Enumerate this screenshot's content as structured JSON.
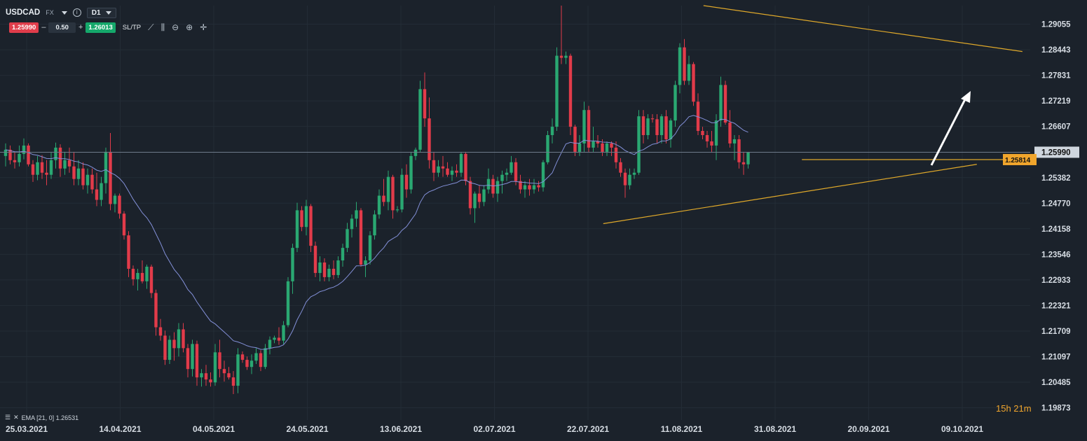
{
  "header": {
    "symbol": "USDCAD",
    "market": "FX",
    "timeframe": "D1",
    "bid": "1.25990",
    "volume": "0.50",
    "ask": "1.26013",
    "sltp": "SL/TP",
    "minus": "–",
    "plus": "+"
  },
  "indicator_label": "EMA [21, 0] 1.26531",
  "timer": "15h 21m",
  "axis": {
    "price_labels": [
      "1.29055",
      "1.28443",
      "1.27831",
      "1.27219",
      "1.26607",
      "1.25990",
      "1.25382",
      "1.24770",
      "1.24158",
      "1.23546",
      "1.22933",
      "1.22321",
      "1.21709",
      "1.21097",
      "1.20485",
      "1.19873"
    ],
    "date_labels": [
      "25.03.2021",
      "14.04.2021",
      "04.05.2021",
      "24.05.2021",
      "13.06.2021",
      "02.07.2021",
      "22.07.2021",
      "11.08.2021",
      "31.08.2021",
      "20.09.2021",
      "09.10.2021"
    ],
    "current_price": "1.25990",
    "horizontal_level": "1.25814"
  },
  "colors": {
    "bull": "#2aa872",
    "bear": "#e23b4a",
    "ema": "#8390d8",
    "trendline": "#e0a92a",
    "current_price_bg": "#cfd6de",
    "level_bg": "#f0a52c",
    "grid": "#232c36"
  },
  "chart_data": {
    "type": "candlestick",
    "ylim": [
      1.1958,
      1.295
    ],
    "x": [
      "25.03.2021",
      "14.04.2021",
      "04.05.2021",
      "24.05.2021",
      "13.06.2021",
      "02.07.2021",
      "22.07.2021",
      "11.08.2021",
      "31.08.2021",
      "20.09.2021",
      "09.10.2021"
    ],
    "candles_ohlc": [
      [
        1.259,
        1.262,
        1.2565,
        1.2605
      ],
      [
        1.2605,
        1.2615,
        1.257,
        1.258
      ],
      [
        1.258,
        1.26,
        1.256,
        1.2575
      ],
      [
        1.2575,
        1.2615,
        1.2565,
        1.2595
      ],
      [
        1.2595,
        1.2632,
        1.2582,
        1.2615
      ],
      [
        1.2615,
        1.262,
        1.2565,
        1.257
      ],
      [
        1.257,
        1.258,
        1.2528,
        1.2545
      ],
      [
        1.2545,
        1.259,
        1.2532,
        1.2575
      ],
      [
        1.2575,
        1.2592,
        1.2535,
        1.255
      ],
      [
        1.255,
        1.258,
        1.252,
        1.2545
      ],
      [
        1.2545,
        1.26,
        1.2535,
        1.258
      ],
      [
        1.258,
        1.2622,
        1.256,
        1.261
      ],
      [
        1.261,
        1.2618,
        1.254,
        1.256
      ],
      [
        1.256,
        1.26,
        1.2545,
        1.258
      ],
      [
        1.258,
        1.261,
        1.255,
        1.2565
      ],
      [
        1.2565,
        1.26,
        1.252,
        1.2535
      ],
      [
        1.2535,
        1.258,
        1.252,
        1.256
      ],
      [
        1.256,
        1.2575,
        1.251,
        1.252
      ],
      [
        1.252,
        1.256,
        1.25,
        1.2545
      ],
      [
        1.2545,
        1.256,
        1.25,
        1.251
      ],
      [
        1.251,
        1.255,
        1.247,
        1.2485
      ],
      [
        1.2485,
        1.254,
        1.247,
        1.2525
      ],
      [
        1.2525,
        1.261,
        1.25,
        1.26
      ],
      [
        1.26,
        1.2645,
        1.246,
        1.2475
      ],
      [
        1.2475,
        1.25,
        1.2455,
        1.2495
      ],
      [
        1.2495,
        1.25,
        1.244,
        1.2452
      ],
      [
        1.2452,
        1.2458,
        1.239,
        1.24
      ],
      [
        1.24,
        1.241,
        1.23,
        1.232
      ],
      [
        1.232,
        1.2328,
        1.228,
        1.2295
      ],
      [
        1.2295,
        1.232,
        1.2268,
        1.231
      ],
      [
        1.231,
        1.234,
        1.2285,
        1.229
      ],
      [
        1.229,
        1.233,
        1.2272,
        1.2325
      ],
      [
        1.2325,
        1.233,
        1.225,
        1.2262
      ],
      [
        1.2262,
        1.227,
        1.216,
        1.218
      ],
      [
        1.218,
        1.22,
        1.2148,
        1.216
      ],
      [
        1.216,
        1.2172,
        1.209,
        1.2102
      ],
      [
        1.2102,
        1.216,
        1.2092,
        1.215
      ],
      [
        1.215,
        1.2168,
        1.21,
        1.213
      ],
      [
        1.213,
        1.219,
        1.211,
        1.2175
      ],
      [
        1.2175,
        1.219,
        1.212,
        1.213
      ],
      [
        1.213,
        1.214,
        1.206,
        1.208
      ],
      [
        1.208,
        1.215,
        1.2062,
        1.214
      ],
      [
        1.214,
        1.2148,
        1.204,
        1.206
      ],
      [
        1.206,
        1.208,
        1.2038,
        1.207
      ],
      [
        1.207,
        1.209,
        1.204,
        1.2055
      ],
      [
        1.2055,
        1.2072,
        1.2038,
        1.2048
      ],
      [
        1.2048,
        1.214,
        1.204,
        1.212
      ],
      [
        1.212,
        1.215,
        1.206,
        1.208
      ],
      [
        1.208,
        1.21,
        1.205,
        1.207
      ],
      [
        1.207,
        1.2085,
        1.2055,
        1.206
      ],
      [
        1.206,
        1.2075,
        1.202,
        1.204
      ],
      [
        1.204,
        1.213,
        1.2022,
        1.2115
      ],
      [
        1.2115,
        1.2122,
        1.2095,
        1.2102
      ],
      [
        1.2102,
        1.211,
        1.2078,
        1.2085
      ],
      [
        1.2085,
        1.2115,
        1.2068,
        1.21
      ],
      [
        1.21,
        1.213,
        1.2092,
        1.2118
      ],
      [
        1.2118,
        1.2125,
        1.2075,
        1.2085
      ],
      [
        1.2085,
        1.214,
        1.208,
        1.213
      ],
      [
        1.213,
        1.2158,
        1.2115,
        1.215
      ],
      [
        1.215,
        1.216,
        1.2142,
        1.2155
      ],
      [
        1.2155,
        1.218,
        1.2138,
        1.2148
      ],
      [
        1.2148,
        1.2195,
        1.214,
        1.2185
      ],
      [
        1.2185,
        1.23,
        1.218,
        1.229
      ],
      [
        1.229,
        1.238,
        1.226,
        1.237
      ],
      [
        1.237,
        1.2478,
        1.236,
        1.246
      ],
      [
        1.246,
        1.247,
        1.241,
        1.242
      ],
      [
        1.242,
        1.2485,
        1.24,
        1.247
      ],
      [
        1.247,
        1.2475,
        1.236,
        1.2375
      ],
      [
        1.2375,
        1.2385,
        1.23,
        1.231
      ],
      [
        1.231,
        1.235,
        1.229,
        1.2335
      ],
      [
        1.2335,
        1.2345,
        1.229,
        1.23
      ],
      [
        1.23,
        1.233,
        1.229,
        1.232
      ],
      [
        1.232,
        1.234,
        1.2295,
        1.2305
      ],
      [
        1.2305,
        1.235,
        1.2298,
        1.234
      ],
      [
        1.234,
        1.238,
        1.2325,
        1.237
      ],
      [
        1.237,
        1.243,
        1.236,
        1.2415
      ],
      [
        1.2415,
        1.245,
        1.2395,
        1.244
      ],
      [
        1.244,
        1.248,
        1.242,
        1.246
      ],
      [
        1.246,
        1.2465,
        1.2325,
        1.233
      ],
      [
        1.233,
        1.235,
        1.23,
        1.234
      ],
      [
        1.234,
        1.241,
        1.233,
        1.24
      ],
      [
        1.24,
        1.246,
        1.239,
        1.245
      ],
      [
        1.245,
        1.251,
        1.244,
        1.2495
      ],
      [
        1.2495,
        1.2535,
        1.247,
        1.248
      ],
      [
        1.248,
        1.2555,
        1.246,
        1.254
      ],
      [
        1.254,
        1.2545,
        1.244,
        1.246
      ],
      [
        1.246,
        1.247,
        1.2455,
        1.2462
      ],
      [
        1.2462,
        1.256,
        1.2455,
        1.2545
      ],
      [
        1.2545,
        1.257,
        1.249,
        1.251
      ],
      [
        1.251,
        1.26,
        1.25,
        1.259
      ],
      [
        1.259,
        1.261,
        1.258,
        1.2605
      ],
      [
        1.2605,
        1.277,
        1.26,
        1.275
      ],
      [
        1.275,
        1.279,
        1.266,
        1.268
      ],
      [
        1.268,
        1.273,
        1.256,
        1.258
      ],
      [
        1.258,
        1.26,
        1.253,
        1.255
      ],
      [
        1.255,
        1.258,
        1.254,
        1.2565
      ],
      [
        1.2565,
        1.259,
        1.254,
        1.256
      ],
      [
        1.256,
        1.2575,
        1.254,
        1.2545
      ],
      [
        1.2545,
        1.2565,
        1.253,
        1.2555
      ],
      [
        1.2555,
        1.257,
        1.254,
        1.255
      ],
      [
        1.255,
        1.26,
        1.254,
        1.2595
      ],
      [
        1.2595,
        1.26,
        1.252,
        1.253
      ],
      [
        1.253,
        1.254,
        1.245,
        1.2465
      ],
      [
        1.2465,
        1.2505,
        1.243,
        1.25
      ],
      [
        1.25,
        1.252,
        1.2465,
        1.248
      ],
      [
        1.248,
        1.252,
        1.247,
        1.251
      ],
      [
        1.251,
        1.256,
        1.25,
        1.2535
      ],
      [
        1.2535,
        1.2545,
        1.249,
        1.25
      ],
      [
        1.25,
        1.254,
        1.248,
        1.253
      ],
      [
        1.253,
        1.2555,
        1.25,
        1.2545
      ],
      [
        1.2545,
        1.256,
        1.253,
        1.255
      ],
      [
        1.255,
        1.259,
        1.2545,
        1.2575
      ],
      [
        1.2575,
        1.2585,
        1.252,
        1.253
      ],
      [
        1.253,
        1.2545,
        1.25,
        1.251
      ],
      [
        1.251,
        1.253,
        1.249,
        1.252
      ],
      [
        1.252,
        1.2535,
        1.2495,
        1.251
      ],
      [
        1.251,
        1.2535,
        1.25,
        1.252
      ],
      [
        1.252,
        1.253,
        1.2505,
        1.2515
      ],
      [
        1.2515,
        1.258,
        1.2505,
        1.2575
      ],
      [
        1.2575,
        1.265,
        1.257,
        1.264
      ],
      [
        1.264,
        1.268,
        1.262,
        1.266
      ],
      [
        1.266,
        1.285,
        1.265,
        1.283
      ],
      [
        1.283,
        1.295,
        1.281,
        1.2825
      ],
      [
        1.2825,
        1.284,
        1.281,
        1.283
      ],
      [
        1.283,
        1.2835,
        1.264,
        1.266
      ],
      [
        1.266,
        1.2665,
        1.259,
        1.26
      ],
      [
        1.26,
        1.264,
        1.259,
        1.262
      ],
      [
        1.262,
        1.272,
        1.26,
        1.27
      ],
      [
        1.27,
        1.271,
        1.26,
        1.261
      ],
      [
        1.261,
        1.266,
        1.26,
        1.2625
      ],
      [
        1.2625,
        1.264,
        1.261,
        1.262
      ],
      [
        1.262,
        1.263,
        1.259,
        1.26
      ],
      [
        1.26,
        1.2625,
        1.259,
        1.262
      ],
      [
        1.262,
        1.2625,
        1.259,
        1.261
      ],
      [
        1.261,
        1.2625,
        1.256,
        1.2575
      ],
      [
        1.2575,
        1.2585,
        1.254,
        1.255
      ],
      [
        1.255,
        1.256,
        1.249,
        1.252
      ],
      [
        1.252,
        1.256,
        1.251,
        1.2545
      ],
      [
        1.2545,
        1.256,
        1.2535,
        1.255
      ],
      [
        1.255,
        1.27,
        1.2545,
        1.2685
      ],
      [
        1.2685,
        1.27,
        1.262,
        1.264
      ],
      [
        1.264,
        1.269,
        1.263,
        1.268
      ],
      [
        1.268,
        1.269,
        1.267,
        1.2678
      ],
      [
        1.2678,
        1.269,
        1.262,
        1.264
      ],
      [
        1.264,
        1.269,
        1.262,
        1.2685
      ],
      [
        1.2685,
        1.27,
        1.262,
        1.263
      ],
      [
        1.263,
        1.268,
        1.261,
        1.2675
      ],
      [
        1.2675,
        1.277,
        1.266,
        1.276
      ],
      [
        1.276,
        1.286,
        1.274,
        1.285
      ],
      [
        1.285,
        1.287,
        1.276,
        1.277
      ],
      [
        1.277,
        1.283,
        1.276,
        1.281
      ],
      [
        1.281,
        1.2815,
        1.271,
        1.272
      ],
      [
        1.272,
        1.274,
        1.264,
        1.265
      ],
      [
        1.265,
        1.266,
        1.263,
        1.264
      ],
      [
        1.264,
        1.265,
        1.261,
        1.2625
      ],
      [
        1.2625,
        1.265,
        1.26,
        1.2615
      ],
      [
        1.2615,
        1.269,
        1.258,
        1.2675
      ],
      [
        1.2675,
        1.278,
        1.266,
        1.276
      ],
      [
        1.276,
        1.277,
        1.2665,
        1.267
      ],
      [
        1.267,
        1.27,
        1.261,
        1.262
      ],
      [
        1.262,
        1.264,
        1.258,
        1.263
      ],
      [
        1.263,
        1.264,
        1.256,
        1.2575
      ],
      [
        1.2575,
        1.26,
        1.2545,
        1.257
      ],
      [
        1.257,
        1.26,
        1.256,
        1.2599
      ]
    ],
    "ema_21_current": "1.26531",
    "annotations": [
      "descending resistance trendline",
      "ascending support trendline",
      "horizontal level 1.25814",
      "upward arrow"
    ]
  }
}
